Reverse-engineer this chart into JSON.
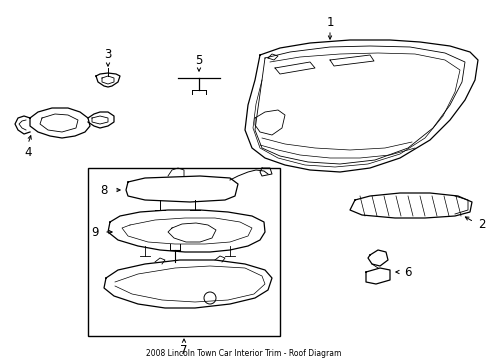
{
  "title": "2008 Lincoln Town Car Interior Trim - Roof Diagram",
  "background_color": "#ffffff",
  "line_color": "#000000",
  "text_color": "#000000",
  "fig_width": 4.89,
  "fig_height": 3.6,
  "dpi": 100
}
